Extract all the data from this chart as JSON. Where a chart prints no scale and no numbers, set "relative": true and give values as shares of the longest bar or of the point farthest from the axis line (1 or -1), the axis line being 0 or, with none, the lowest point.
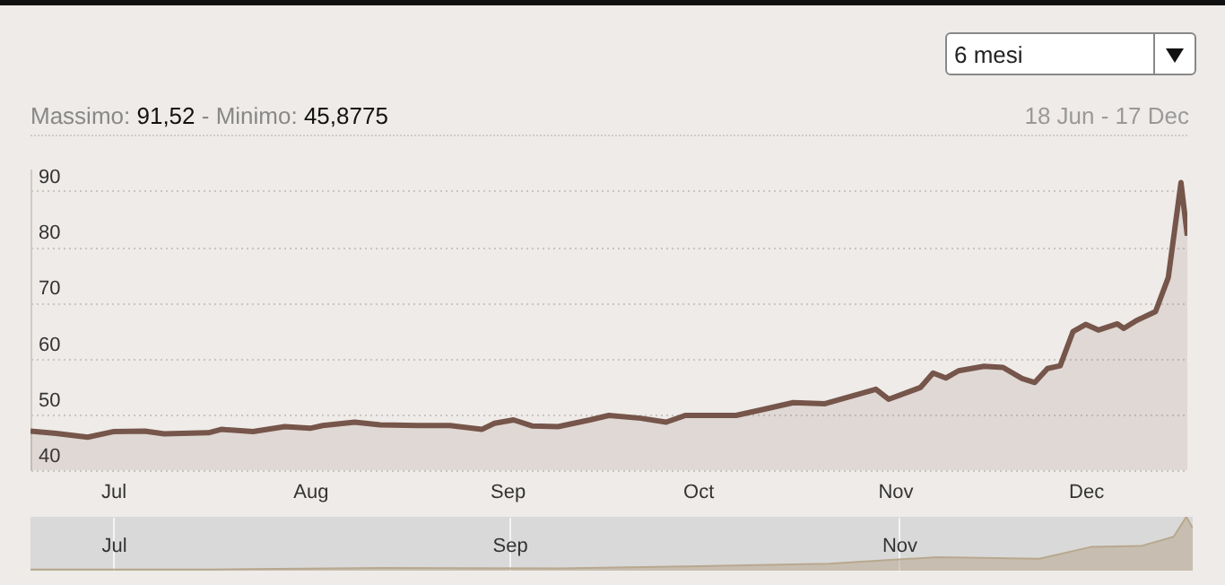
{
  "chart_data": [
    {
      "type": "area",
      "subtitle": "Massimo: 91,52 - Minimo: 45,8775",
      "annotations": [
        "6 mesi",
        "18 Jun - 17 Dec"
      ],
      "x": [
        "--06-18",
        "--06-22",
        "--06-27",
        "--07-01",
        "--07-06",
        "--07-09",
        "--07-16",
        "--07-18",
        "--07-23",
        "--07-28",
        "--08-01",
        "--08-03",
        "--08-08",
        "--08-12",
        "--08-18",
        "--08-23",
        "--08-28",
        "--08-30",
        "--09-02",
        "--09-05",
        "--09-09",
        "--09-14",
        "--09-17",
        "--09-22",
        "--09-26",
        "--09-29",
        "--10-07",
        "--10-11",
        "--10-16",
        "--10-21",
        "--10-29",
        "--10-31",
        "--11-05",
        "--11-07",
        "--11-09",
        "--11-11",
        "--11-15",
        "--11-18",
        "--11-21",
        "--11-23",
        "--11-25",
        "--11-27",
        "--11-29",
        "--12-01",
        "--12-03",
        "--12-06",
        "--12-07",
        "--12-09",
        "--12-12",
        "--12-14",
        "--12-16",
        "--12-17"
      ],
      "series": [
        {
          "color": "#76554a",
          "values": [
            47.0,
            46.6,
            45.9,
            46.9,
            47.0,
            46.5,
            46.7,
            47.3,
            46.9,
            47.8,
            47.5,
            48.0,
            48.6,
            48.1,
            48.0,
            48.0,
            47.3,
            48.4,
            49.0,
            47.9,
            47.8,
            49.0,
            49.8,
            49.3,
            48.6,
            49.8,
            49.8,
            50.8,
            52.1,
            51.9,
            54.5,
            52.7,
            54.8,
            57.4,
            56.5,
            57.8,
            58.6,
            58.4,
            56.4,
            55.7,
            58.2,
            58.7,
            64.8,
            66.1,
            65.1,
            66.2,
            65.4,
            66.8,
            68.4,
            74.5,
            91.5,
            82.0
          ]
        }
      ],
      "xlim": [
        "--06-18",
        "--12-17"
      ],
      "xticks": [
        {
          "value": "--07-01",
          "label": "Jul"
        },
        {
          "value": "--08-01",
          "label": "Aug"
        },
        {
          "value": "--09-01",
          "label": "Sep"
        },
        {
          "value": "--10-01",
          "label": "Oct"
        },
        {
          "value": "--11-01",
          "label": "Nov"
        },
        {
          "value": "--12-01",
          "label": "Dec"
        }
      ],
      "ylim": [
        40,
        94
      ],
      "yticks": [
        40,
        50,
        60,
        70,
        80,
        90
      ],
      "grid": "y"
    },
    {
      "type": "area",
      "relative": true,
      "x": [
        "--06-18",
        "--07-16",
        "--08-12",
        "--09-09",
        "--09-29",
        "--10-21",
        "--11-07",
        "--11-23",
        "--12-01",
        "--12-09",
        "--12-14",
        "--12-16",
        "--12-17"
      ],
      "series": [
        {
          "color": "#b8a88f",
          "values": [
            0.02,
            0.02,
            0.05,
            0.04,
            0.08,
            0.13,
            0.25,
            0.22,
            0.44,
            0.46,
            0.63,
            1,
            0.79
          ]
        }
      ],
      "xlim": [
        "--06-18",
        "--12-17"
      ],
      "xticks": [
        {
          "value": "--07-01",
          "label": "Jul"
        },
        {
          "value": "--09-01",
          "label": "Sep"
        },
        {
          "value": "--11-01",
          "label": "Nov"
        }
      ],
      "grid": "x"
    }
  ]
}
